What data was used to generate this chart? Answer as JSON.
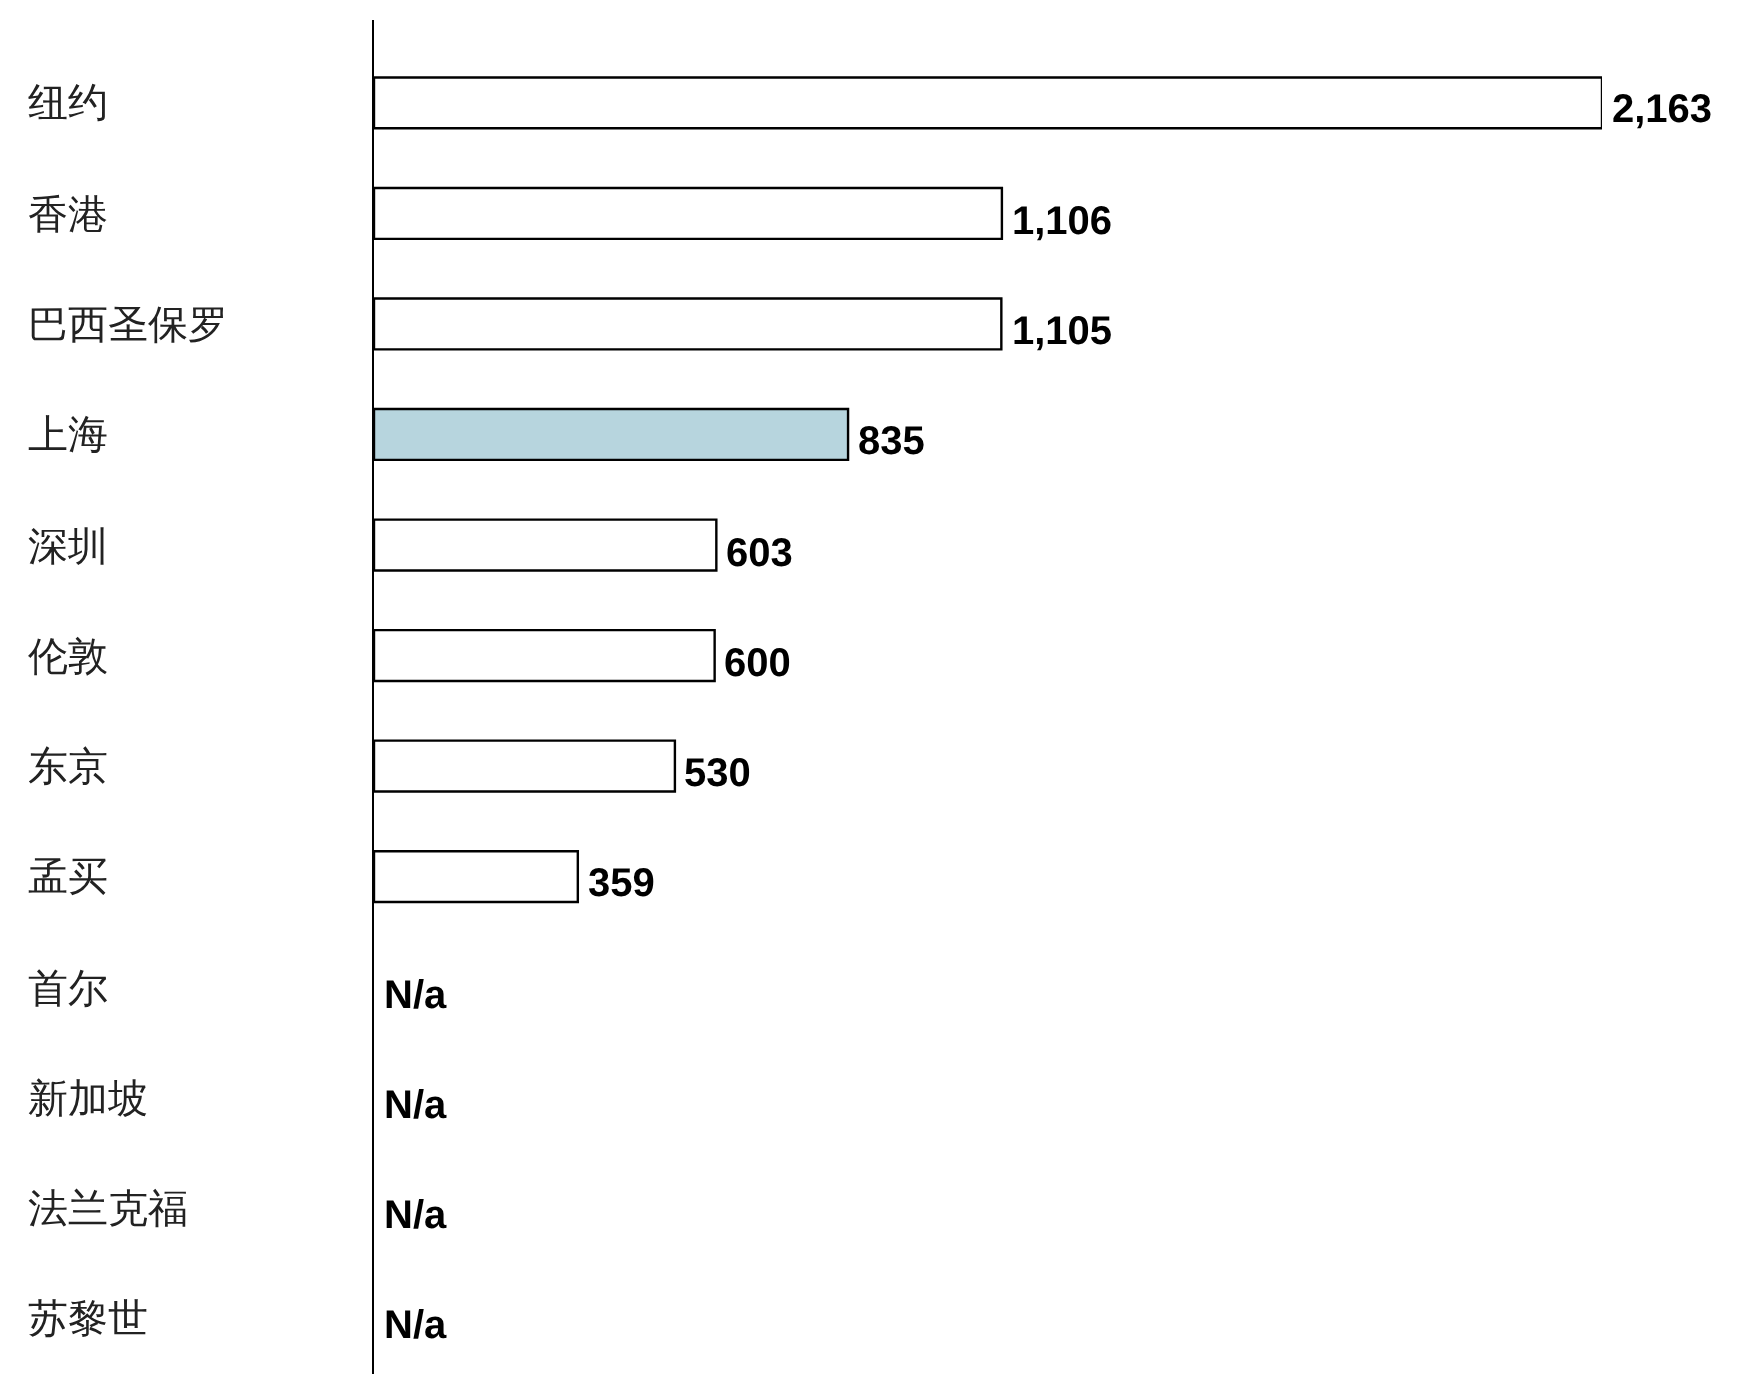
{
  "chart_data": {
    "type": "bar",
    "orientation": "horizontal",
    "categories": [
      "纽约",
      "香港",
      "巴西圣保罗",
      "上海",
      "深圳",
      "伦敦",
      "东京",
      "孟买",
      "首尔",
      "新加坡",
      "法兰克福",
      "苏黎世"
    ],
    "values": [
      2163,
      1106,
      1105,
      835,
      603,
      600,
      530,
      359,
      null,
      null,
      null,
      null
    ],
    "value_labels": [
      "2,163",
      "1,106",
      "1,105",
      "835",
      "603",
      "600",
      "530",
      "359",
      "N/a",
      "N/a",
      "N/a",
      "N/a"
    ],
    "colors": [
      "#ffffff",
      "#ffffff",
      "#ffffff",
      "#b7d5de",
      "#ffffff",
      "#ffffff",
      "#ffffff",
      "#ffffff",
      "#ffffff",
      "#ffffff",
      "#ffffff",
      "#ffffff"
    ]
  }
}
